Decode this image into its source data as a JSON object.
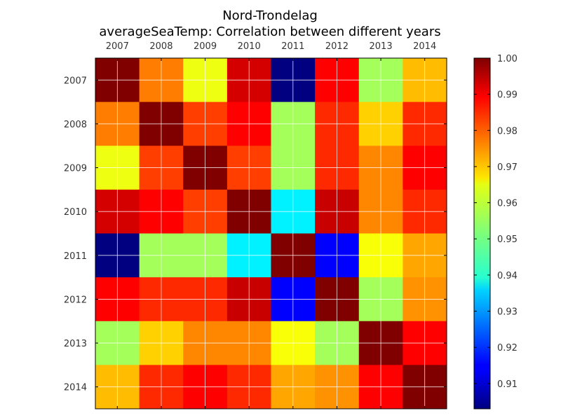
{
  "chart_data": {
    "type": "heatmap",
    "title": "Nord-Trondelag",
    "subtitle": "averageSeaTemp: Correlation between different years",
    "x_categories": [
      "2007",
      "2008",
      "2009",
      "2010",
      "2011",
      "2012",
      "2013",
      "2014"
    ],
    "y_categories": [
      "2007",
      "2008",
      "2009",
      "2010",
      "2011",
      "2012",
      "2013",
      "2014"
    ],
    "values": [
      [
        1.0,
        0.976,
        0.962,
        0.992,
        0.903,
        0.988,
        0.955,
        0.97
      ],
      [
        0.976,
        1.0,
        0.982,
        0.988,
        0.955,
        0.984,
        0.968,
        0.984
      ],
      [
        0.962,
        0.982,
        1.0,
        0.982,
        0.955,
        0.984,
        0.975,
        0.988
      ],
      [
        0.992,
        0.988,
        0.982,
        1.0,
        0.938,
        0.993,
        0.975,
        0.984
      ],
      [
        0.903,
        0.955,
        0.955,
        0.938,
        1.0,
        0.915,
        0.963,
        0.972
      ],
      [
        0.988,
        0.984,
        0.984,
        0.993,
        0.915,
        1.0,
        0.955,
        0.974
      ],
      [
        0.955,
        0.968,
        0.975,
        0.975,
        0.963,
        0.955,
        1.0,
        0.988
      ],
      [
        0.97,
        0.984,
        0.988,
        0.984,
        0.972,
        0.974,
        0.988,
        1.0
      ]
    ],
    "colorbar": {
      "min": 0.903,
      "max": 1.0,
      "ticks": [
        0.91,
        0.92,
        0.93,
        0.94,
        0.95,
        0.96,
        0.97,
        0.98,
        0.99,
        1.0
      ],
      "tick_labels": [
        "0.91",
        "0.92",
        "0.93",
        "0.94",
        "0.95",
        "0.96",
        "0.97",
        "0.98",
        "0.99",
        "1.00"
      ]
    },
    "colormap": "jet",
    "grid": true,
    "x_ticks_position": "top"
  }
}
